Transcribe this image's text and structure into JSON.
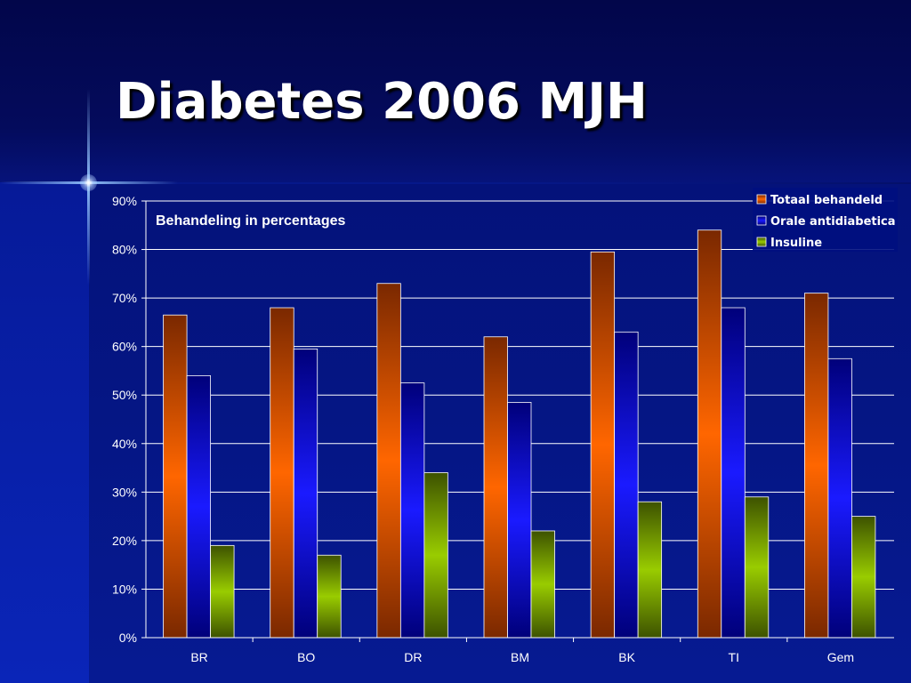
{
  "slide": {
    "title": "Diabetes 2006 MJH"
  },
  "colors": {
    "orange": "#ff6600",
    "blue": "#1a1aff",
    "green": "#99cc00"
  },
  "chart_data": {
    "type": "bar",
    "title": "Behandeling in percentages",
    "categories": [
      "BR",
      "BO",
      "DR",
      "BM",
      "BK",
      "TI",
      "Gem"
    ],
    "series": [
      {
        "name": "Totaal behandeld",
        "color": "#ff6600",
        "values": [
          66.5,
          68,
          73,
          62,
          79.5,
          84,
          71
        ]
      },
      {
        "name": "Orale antidiabetica",
        "color": "#1a1aff",
        "values": [
          54,
          59.5,
          52.5,
          48.5,
          63,
          68,
          57.5
        ]
      },
      {
        "name": "Insuline",
        "color": "#99cc00",
        "values": [
          19,
          17,
          34,
          22,
          28,
          29,
          25
        ]
      }
    ],
    "yticks": [
      "0%",
      "10%",
      "20%",
      "30%",
      "40%",
      "50%",
      "60%",
      "70%",
      "80%",
      "90%"
    ],
    "ylim": [
      0,
      90
    ],
    "grid": true,
    "legend": "top-right"
  }
}
